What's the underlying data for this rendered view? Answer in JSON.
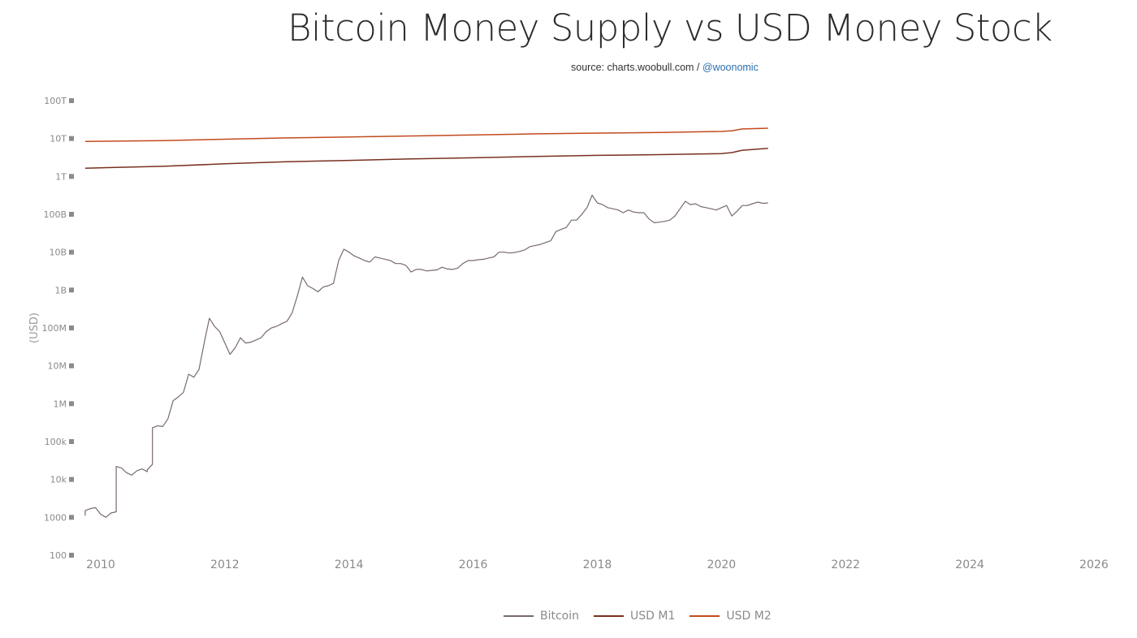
{
  "header": {
    "title": "Bitcoin Money Supply vs USD Money Stock",
    "source_prefix": "source: charts.woobull.com / ",
    "source_handle": "@woonomic"
  },
  "chart_data": {
    "type": "line",
    "title": "Bitcoin Money Supply vs USD Money Stock",
    "ylabel": "(USD)",
    "xlabel": "",
    "y_scale": "log",
    "ylim": [
      100,
      100000000000000
    ],
    "xlim": [
      "2009-09",
      "2026-06"
    ],
    "y_tick_labels": [
      "100",
      "1000",
      "10k",
      "100k",
      "1M",
      "10M",
      "100M",
      "1B",
      "10B",
      "100B",
      "1T",
      "10T",
      "100T"
    ],
    "x_tick_labels": [
      "2010",
      "2012",
      "2014",
      "2016",
      "2018",
      "2020",
      "2022",
      "2024",
      "2026"
    ],
    "grid": false,
    "legend_position": "bottom",
    "series": [
      {
        "name": "Bitcoin",
        "color": "#7a6a6a",
        "points": [
          [
            "2009-10",
            1100
          ],
          [
            "2009-10",
            1500
          ],
          [
            "2009-11",
            1700
          ],
          [
            "2009-12",
            1800
          ],
          [
            "2010-01",
            1200
          ],
          [
            "2010-02",
            1000
          ],
          [
            "2010-03",
            1300
          ],
          [
            "2010-04",
            1400
          ],
          [
            "2010-04",
            22000
          ],
          [
            "2010-05",
            20000
          ],
          [
            "2010-06",
            15000
          ],
          [
            "2010-07",
            13000
          ],
          [
            "2010-08",
            17000
          ],
          [
            "2010-09",
            19000
          ],
          [
            "2010-10",
            16000
          ],
          [
            "2010-10",
            18000
          ],
          [
            "2010-11",
            25000
          ],
          [
            "2010-11",
            230000
          ],
          [
            "2010-12",
            260000
          ],
          [
            "2011-01",
            250000
          ],
          [
            "2011-02",
            400000
          ],
          [
            "2011-03",
            1200000
          ],
          [
            "2011-04",
            1500000
          ],
          [
            "2011-05",
            2000000
          ],
          [
            "2011-06",
            6000000
          ],
          [
            "2011-07",
            5000000
          ],
          [
            "2011-08",
            8000000
          ],
          [
            "2011-09",
            40000000
          ],
          [
            "2011-10",
            180000000
          ],
          [
            "2011-11",
            110000000
          ],
          [
            "2011-12",
            80000000
          ],
          [
            "2012-01",
            40000000
          ],
          [
            "2012-02",
            20000000
          ],
          [
            "2012-03",
            30000000
          ],
          [
            "2012-04",
            55000000
          ],
          [
            "2012-05",
            40000000
          ],
          [
            "2012-06",
            42000000
          ],
          [
            "2012-07",
            48000000
          ],
          [
            "2012-08",
            55000000
          ],
          [
            "2012-09",
            80000000
          ],
          [
            "2012-10",
            100000000
          ],
          [
            "2012-11",
            110000000
          ],
          [
            "2012-12",
            130000000
          ],
          [
            "2013-01",
            150000000
          ],
          [
            "2013-02",
            250000000
          ],
          [
            "2013-03",
            700000000
          ],
          [
            "2013-04",
            2200000000
          ],
          [
            "2013-05",
            1300000000
          ],
          [
            "2013-06",
            1100000000
          ],
          [
            "2013-07",
            900000000
          ],
          [
            "2013-08",
            1200000000
          ],
          [
            "2013-09",
            1300000000
          ],
          [
            "2013-10",
            1500000000
          ],
          [
            "2013-11",
            6000000000
          ],
          [
            "2013-12",
            12000000000
          ],
          [
            "2014-01",
            10000000000
          ],
          [
            "2014-02",
            8000000000
          ],
          [
            "2014-03",
            7000000000
          ],
          [
            "2014-04",
            6000000000
          ],
          [
            "2014-05",
            5500000000
          ],
          [
            "2014-06",
            7500000000
          ],
          [
            "2014-07",
            7000000000
          ],
          [
            "2014-08",
            6500000000
          ],
          [
            "2014-09",
            6000000000
          ],
          [
            "2014-10",
            5000000000
          ],
          [
            "2014-11",
            5000000000
          ],
          [
            "2014-12",
            4500000000
          ],
          [
            "2015-01",
            3000000000
          ],
          [
            "2015-02",
            3500000000
          ],
          [
            "2015-03",
            3500000000
          ],
          [
            "2015-04",
            3200000000
          ],
          [
            "2015-05",
            3300000000
          ],
          [
            "2015-06",
            3400000000
          ],
          [
            "2015-07",
            4000000000
          ],
          [
            "2015-08",
            3600000000
          ],
          [
            "2015-09",
            3500000000
          ],
          [
            "2015-10",
            3800000000
          ],
          [
            "2015-11",
            5000000000
          ],
          [
            "2015-12",
            6000000000
          ],
          [
            "2016-01",
            6000000000
          ],
          [
            "2016-02",
            6300000000
          ],
          [
            "2016-03",
            6500000000
          ],
          [
            "2016-04",
            7000000000
          ],
          [
            "2016-05",
            7500000000
          ],
          [
            "2016-06",
            10000000000
          ],
          [
            "2016-07",
            10000000000
          ],
          [
            "2016-08",
            9500000000
          ],
          [
            "2016-09",
            9800000000
          ],
          [
            "2016-10",
            10500000000
          ],
          [
            "2016-11",
            11500000000
          ],
          [
            "2016-12",
            14000000000
          ],
          [
            "2017-01",
            15000000000
          ],
          [
            "2017-02",
            16000000000
          ],
          [
            "2017-03",
            18000000000
          ],
          [
            "2017-04",
            20000000000
          ],
          [
            "2017-05",
            35000000000
          ],
          [
            "2017-06",
            40000000000
          ],
          [
            "2017-07",
            45000000000
          ],
          [
            "2017-08",
            70000000000
          ],
          [
            "2017-09",
            70000000000
          ],
          [
            "2017-10",
            100000000000
          ],
          [
            "2017-11",
            150000000000
          ],
          [
            "2017-12",
            320000000000
          ],
          [
            "2018-01",
            200000000000
          ],
          [
            "2018-02",
            180000000000
          ],
          [
            "2018-03",
            150000000000
          ],
          [
            "2018-04",
            140000000000
          ],
          [
            "2018-05",
            130000000000
          ],
          [
            "2018-06",
            110000000000
          ],
          [
            "2018-07",
            130000000000
          ],
          [
            "2018-08",
            115000000000
          ],
          [
            "2018-09",
            110000000000
          ],
          [
            "2018-10",
            110000000000
          ],
          [
            "2018-11",
            75000000000
          ],
          [
            "2018-12",
            60000000000
          ],
          [
            "2019-01",
            62000000000
          ],
          [
            "2019-02",
            65000000000
          ],
          [
            "2019-03",
            70000000000
          ],
          [
            "2019-04",
            90000000000
          ],
          [
            "2019-05",
            140000000000
          ],
          [
            "2019-06",
            220000000000
          ],
          [
            "2019-07",
            180000000000
          ],
          [
            "2019-08",
            190000000000
          ],
          [
            "2019-09",
            160000000000
          ],
          [
            "2019-10",
            150000000000
          ],
          [
            "2019-11",
            140000000000
          ],
          [
            "2019-12",
            130000000000
          ],
          [
            "2020-01",
            150000000000
          ],
          [
            "2020-02",
            170000000000
          ],
          [
            "2020-03",
            90000000000
          ],
          [
            "2020-04",
            120000000000
          ],
          [
            "2020-05",
            170000000000
          ],
          [
            "2020-06",
            170000000000
          ],
          [
            "2020-07",
            190000000000
          ],
          [
            "2020-08",
            210000000000
          ],
          [
            "2020-09",
            195000000000
          ],
          [
            "2020-10",
            200000000000
          ]
        ]
      },
      {
        "name": "USD M1",
        "color": "#7a3020",
        "points": [
          [
            "2009-10",
            1650000000000
          ],
          [
            "2011-01",
            1850000000000
          ],
          [
            "2012-01",
            2150000000000
          ],
          [
            "2013-01",
            2450000000000
          ],
          [
            "2014-01",
            2650000000000
          ],
          [
            "2015-01",
            2900000000000
          ],
          [
            "2016-01",
            3100000000000
          ],
          [
            "2017-01",
            3350000000000
          ],
          [
            "2018-01",
            3600000000000
          ],
          [
            "2019-01",
            3750000000000
          ],
          [
            "2020-01",
            4000000000000
          ],
          [
            "2020-03",
            4250000000000
          ],
          [
            "2020-05",
            4900000000000
          ],
          [
            "2020-10",
            5500000000000
          ]
        ]
      },
      {
        "name": "USD M2",
        "color": "#c24a1e",
        "points": [
          [
            "2009-10",
            8400000000000
          ],
          [
            "2011-01",
            8800000000000
          ],
          [
            "2012-01",
            9600000000000
          ],
          [
            "2013-01",
            10400000000000
          ],
          [
            "2014-01",
            11000000000000
          ],
          [
            "2015-01",
            11700000000000
          ],
          [
            "2016-01",
            12400000000000
          ],
          [
            "2017-01",
            13300000000000
          ],
          [
            "2018-01",
            13900000000000
          ],
          [
            "2019-01",
            14400000000000
          ],
          [
            "2020-01",
            15400000000000
          ],
          [
            "2020-03",
            16000000000000
          ],
          [
            "2020-05",
            17900000000000
          ],
          [
            "2020-10",
            18700000000000
          ]
        ]
      }
    ]
  }
}
